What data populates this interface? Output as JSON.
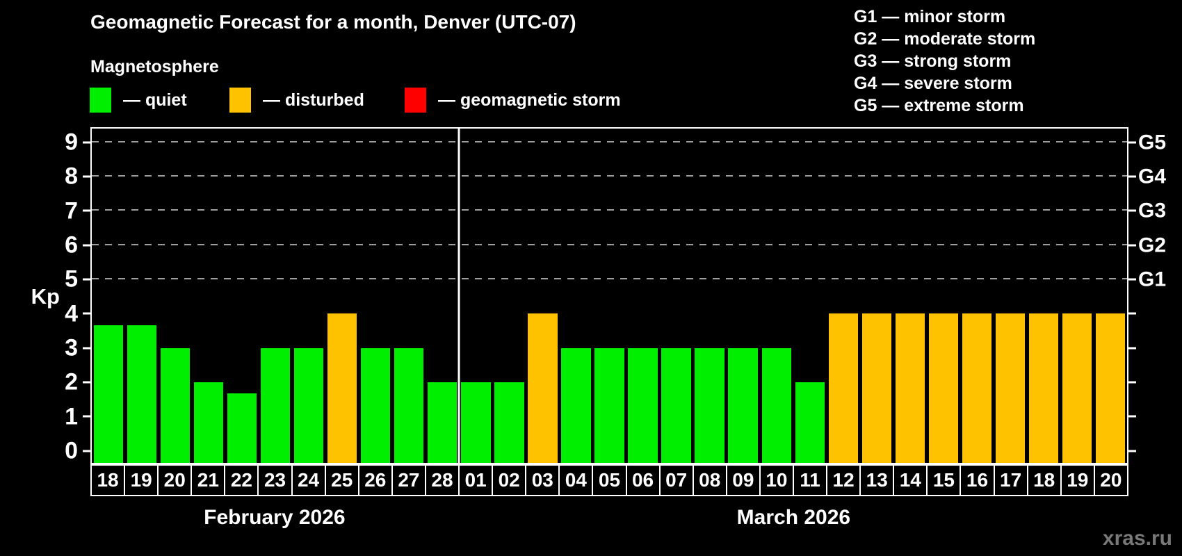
{
  "title": "Geomagnetic Forecast for a month, Denver (UTC-07)",
  "subtitle": "Magnetosphere",
  "legend": {
    "items": [
      {
        "name": "quiet",
        "label": "— quiet",
        "color": "#00ef00"
      },
      {
        "name": "disturbed",
        "label": "— disturbed",
        "color": "#ffc200"
      },
      {
        "name": "geomagnetic-storm",
        "label": "— geomagnetic storm",
        "color": "#ff0000"
      }
    ]
  },
  "g_scale_legend": [
    {
      "label": "G1 — minor storm"
    },
    {
      "label": "G2 — moderate storm"
    },
    {
      "label": "G3 — strong storm"
    },
    {
      "label": "G4 — severe storm"
    },
    {
      "label": "G5 — extreme storm"
    }
  ],
  "watermark": "xras.ru",
  "chart_data": {
    "type": "bar",
    "title": "Geomagnetic Forecast for a month, Denver (UTC-07)",
    "ylabel": "Kp",
    "ylim": [
      0,
      9
    ],
    "y_ticks": [
      0,
      1,
      2,
      3,
      4,
      5,
      6,
      7,
      8,
      9
    ],
    "gridlines": [
      5,
      6,
      7,
      8,
      9
    ],
    "grid": "dashed, only at G-storm levels 5-9",
    "right_axis": [
      {
        "value": 5,
        "label": "G1"
      },
      {
        "value": 6,
        "label": "G2"
      },
      {
        "value": 7,
        "label": "G3"
      },
      {
        "value": 8,
        "label": "G4"
      },
      {
        "value": 9,
        "label": "G5"
      }
    ],
    "colors": {
      "quiet": "#00ef00",
      "disturbed": "#ffc200",
      "storm": "#ff0000"
    },
    "months": [
      {
        "label": "February 2026",
        "start_index": 0,
        "count": 11
      },
      {
        "label": "March 2026",
        "start_index": 11,
        "count": 20
      }
    ],
    "bars": [
      {
        "day": "18",
        "value": 3.67,
        "status": "quiet"
      },
      {
        "day": "19",
        "value": 3.67,
        "status": "quiet"
      },
      {
        "day": "20",
        "value": 3,
        "status": "quiet"
      },
      {
        "day": "21",
        "value": 2,
        "status": "quiet"
      },
      {
        "day": "22",
        "value": 1.67,
        "status": "quiet"
      },
      {
        "day": "23",
        "value": 3,
        "status": "quiet"
      },
      {
        "day": "24",
        "value": 3,
        "status": "quiet"
      },
      {
        "day": "25",
        "value": 4,
        "status": "disturbed"
      },
      {
        "day": "26",
        "value": 3,
        "status": "quiet"
      },
      {
        "day": "27",
        "value": 3,
        "status": "quiet"
      },
      {
        "day": "28",
        "value": 2,
        "status": "quiet"
      },
      {
        "day": "01",
        "value": 2,
        "status": "quiet"
      },
      {
        "day": "02",
        "value": 2,
        "status": "quiet"
      },
      {
        "day": "03",
        "value": 4,
        "status": "disturbed"
      },
      {
        "day": "04",
        "value": 3,
        "status": "quiet"
      },
      {
        "day": "05",
        "value": 3,
        "status": "quiet"
      },
      {
        "day": "06",
        "value": 3,
        "status": "quiet"
      },
      {
        "day": "07",
        "value": 3,
        "status": "quiet"
      },
      {
        "day": "08",
        "value": 3,
        "status": "quiet"
      },
      {
        "day": "09",
        "value": 3,
        "status": "quiet"
      },
      {
        "day": "10",
        "value": 3,
        "status": "quiet"
      },
      {
        "day": "11",
        "value": 2,
        "status": "quiet"
      },
      {
        "day": "12",
        "value": 4,
        "status": "disturbed"
      },
      {
        "day": "13",
        "value": 4,
        "status": "disturbed"
      },
      {
        "day": "14",
        "value": 4,
        "status": "disturbed"
      },
      {
        "day": "15",
        "value": 4,
        "status": "disturbed"
      },
      {
        "day": "16",
        "value": 4,
        "status": "disturbed"
      },
      {
        "day": "17",
        "value": 4,
        "status": "disturbed"
      },
      {
        "day": "18",
        "value": 4,
        "status": "disturbed"
      },
      {
        "day": "19",
        "value": 4,
        "status": "disturbed"
      },
      {
        "day": "20",
        "value": 4,
        "status": "disturbed"
      }
    ]
  }
}
